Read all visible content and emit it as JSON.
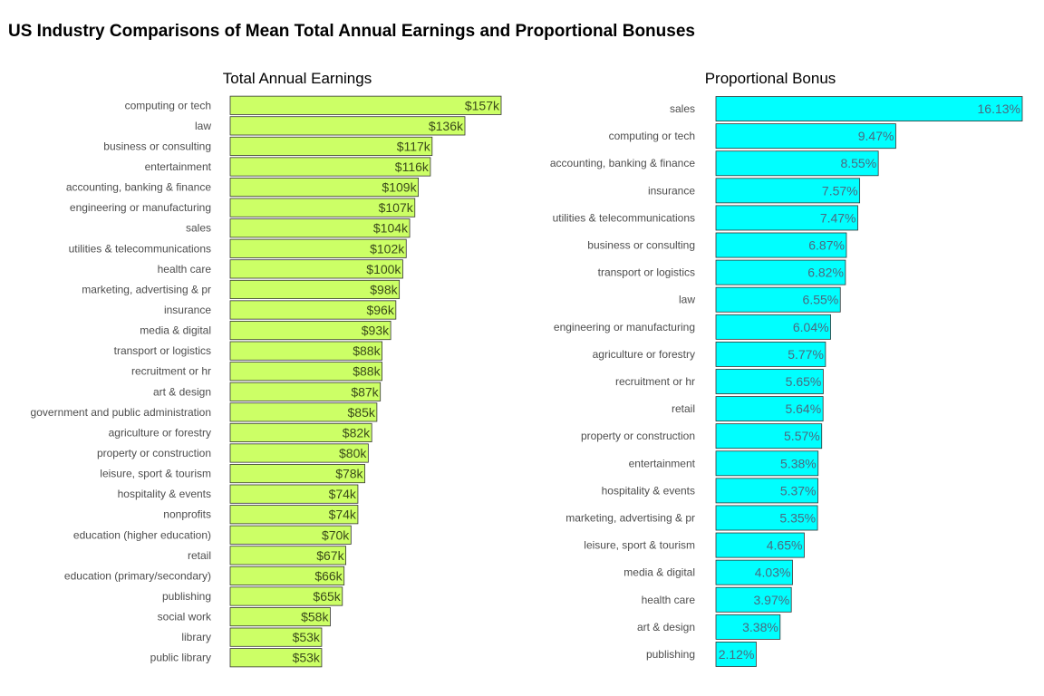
{
  "title": "US Industry Comparisons of Mean Total Annual Earnings and Proportional Bonuses",
  "colors": {
    "earnings_fill": "#ccff66",
    "bonus_fill": "#00ffff",
    "bar_outline": "#333333",
    "label_text": "#4d4d4d",
    "value_text_earnings": "#3a4a1a",
    "value_text_bonus": "#4a6a80"
  },
  "chart_data": [
    {
      "type": "bar",
      "orientation": "horizontal",
      "title": "Total Annual Earnings",
      "xlabel": "",
      "ylabel": "",
      "xlim": [
        0,
        157
      ],
      "unit": "thousand USD",
      "categories": [
        "computing or tech",
        "law",
        "business or consulting",
        "entertainment",
        "accounting, banking & finance",
        "engineering or manufacturing",
        "sales",
        "utilities & telecommunications",
        "health care",
        "marketing, advertising & pr",
        "insurance",
        "media & digital",
        "transport or logistics",
        "recruitment or hr",
        "art & design",
        "government and public administration",
        "agriculture or forestry",
        "property or construction",
        "leisure, sport & tourism",
        "hospitality & events",
        "nonprofits",
        "education (higher education)",
        "retail",
        "education (primary/secondary)",
        "publishing",
        "social work",
        "library",
        "public library"
      ],
      "values": [
        157,
        136,
        117,
        116,
        109,
        107,
        104,
        102,
        100,
        98,
        96,
        93,
        88,
        88,
        87,
        85,
        82,
        80,
        78,
        74,
        74,
        70,
        67,
        66,
        65,
        58,
        53,
        53
      ],
      "data_labels": [
        "$157k",
        "$136k",
        "$117k",
        "$116k",
        "$109k",
        "$107k",
        "$104k",
        "$102k",
        "$100k",
        "$98k",
        "$96k",
        "$93k",
        "$88k",
        "$88k",
        "$87k",
        "$85k",
        "$82k",
        "$80k",
        "$78k",
        "$74k",
        "$74k",
        "$70k",
        "$67k",
        "$66k",
        "$65k",
        "$58k",
        "$53k",
        "$53k"
      ],
      "grid": false
    },
    {
      "type": "bar",
      "orientation": "horizontal",
      "title": "Proportional Bonus",
      "xlabel": "",
      "ylabel": "",
      "xlim": [
        0,
        16.13
      ],
      "unit": "percent",
      "categories": [
        "sales",
        "computing or tech",
        "accounting, banking & finance",
        "insurance",
        "utilities & telecommunications",
        "business or consulting",
        "transport or logistics",
        "law",
        "engineering or manufacturing",
        "agriculture or forestry",
        "recruitment or hr",
        "retail",
        "property or construction",
        "entertainment",
        "hospitality & events",
        "marketing, advertising & pr",
        "leisure, sport & tourism",
        "media & digital",
        "health care",
        "art & design",
        "publishing"
      ],
      "values": [
        16.13,
        9.47,
        8.55,
        7.57,
        7.47,
        6.87,
        6.82,
        6.55,
        6.04,
        5.77,
        5.65,
        5.64,
        5.57,
        5.38,
        5.37,
        5.35,
        4.65,
        4.03,
        3.97,
        3.38,
        2.12
      ],
      "data_labels": [
        "16.13%",
        "9.47%",
        "8.55%",
        "7.57%",
        "7.47%",
        "6.87%",
        "6.82%",
        "6.55%",
        "6.04%",
        "5.77%",
        "5.65%",
        "5.64%",
        "5.57%",
        "5.38%",
        "5.37%",
        "5.35%",
        "4.65%",
        "4.03%",
        "3.97%",
        "3.38%",
        "2.12%"
      ],
      "grid": false
    }
  ]
}
